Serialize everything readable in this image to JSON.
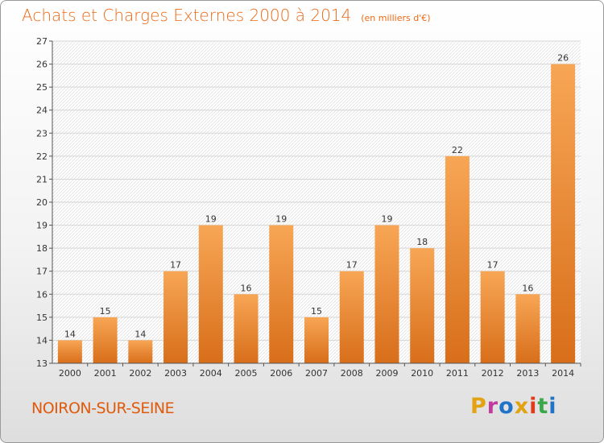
{
  "header": {
    "title": "Achats et Charges Externes 2000 à 2014",
    "subtitle": "(en milliers d'€)"
  },
  "footer": {
    "commune": "NOIRON-SUR-SEINE",
    "logo_text": "Proxiti"
  },
  "colors": {
    "accent": "#ec6a15",
    "bar_light": "#f7a655",
    "bar_dark": "#d86e1a",
    "logo_letters": [
      "#e2a212",
      "#c23aa0",
      "#1f73c8",
      "#e2a212",
      "#e23b1c",
      "#3aa84a",
      "#1f73c8"
    ]
  },
  "chart_data": {
    "type": "bar",
    "categories": [
      "2000",
      "2001",
      "2002",
      "2003",
      "2004",
      "2005",
      "2006",
      "2007",
      "2008",
      "2009",
      "2010",
      "2011",
      "2012",
      "2013",
      "2014"
    ],
    "values": [
      14,
      15,
      14,
      17,
      19,
      16,
      19,
      15,
      17,
      19,
      18,
      22,
      17,
      16,
      26
    ],
    "title": "Achats et Charges Externes 2000 à 2014",
    "subtitle": "(en milliers d'€)",
    "xlabel": "",
    "ylabel": "",
    "ylim": [
      13,
      27
    ],
    "yticks": [
      13,
      14,
      15,
      16,
      17,
      18,
      19,
      20,
      21,
      22,
      23,
      24,
      25,
      26,
      27
    ],
    "grid": true,
    "data_labels": true
  }
}
